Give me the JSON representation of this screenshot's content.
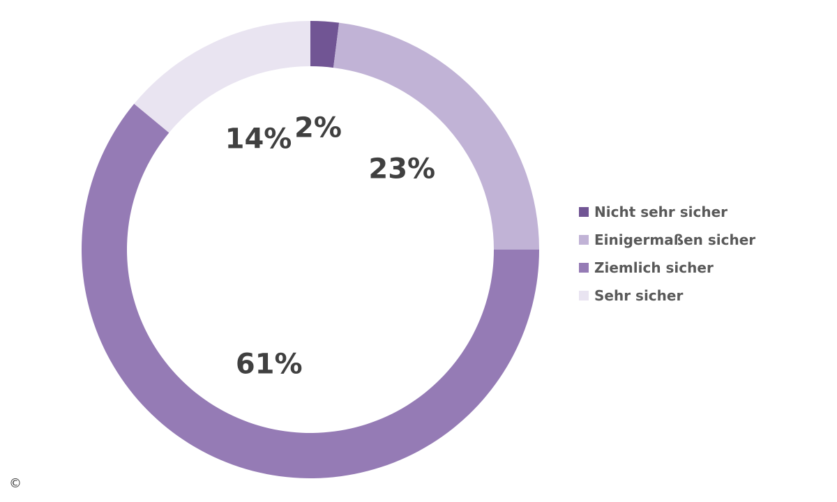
{
  "chart_data": {
    "type": "pie",
    "donut": true,
    "categories": [
      "Nicht sehr sicher",
      "Einigermaßen sicher",
      "Ziemlich sicher",
      "Sehr sicher"
    ],
    "values": [
      2,
      23,
      61,
      14
    ],
    "value_labels": [
      "2%",
      "23%",
      "61%",
      "14%"
    ],
    "unit": "%",
    "colors": [
      "#715594",
      "#c1b3d6",
      "#957bb5",
      "#e9e4f1"
    ],
    "legend": "right",
    "start_angle": "top, clockwise"
  },
  "legend": {
    "items": [
      {
        "label": "Nicht sehr sicher",
        "color": "#715594"
      },
      {
        "label": "Einigermaßen sicher",
        "color": "#c1b3d6"
      },
      {
        "label": "Ziemlich sicher",
        "color": "#957bb5"
      },
      {
        "label": "Sehr sicher",
        "color": "#e9e4f1"
      }
    ]
  },
  "copyright_mark": "©"
}
